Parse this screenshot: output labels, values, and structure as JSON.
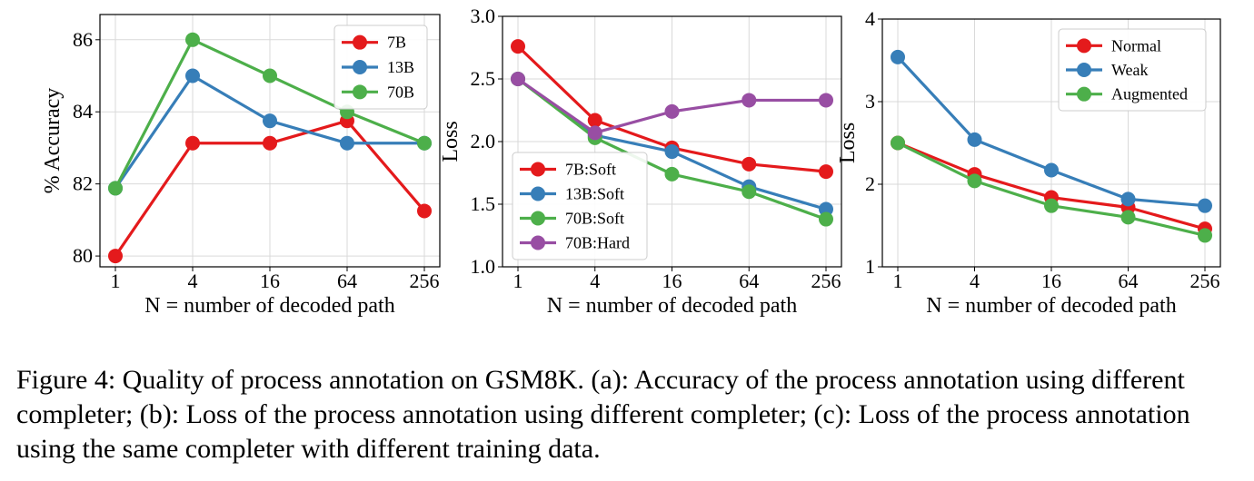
{
  "chart_data": [
    {
      "type": "line",
      "x": [
        "1",
        "4",
        "16",
        "64",
        "256"
      ],
      "ylabel": "% Accuracy",
      "xlabel": "N = number of decoded path",
      "ylim": [
        79.7,
        86.7
      ],
      "yticks": [
        80,
        82,
        84,
        86
      ],
      "ytick_labels": [
        "80",
        "82",
        "84",
        "86"
      ],
      "grid": true,
      "legend": "top-right",
      "series": [
        {
          "name": "7B",
          "color": "#e41a1c",
          "values": [
            80.0,
            83.13,
            83.13,
            83.75,
            81.25
          ]
        },
        {
          "name": "13B",
          "color": "#377eb8",
          "values": [
            81.88,
            85.0,
            83.75,
            83.13,
            83.13
          ]
        },
        {
          "name": "70B",
          "color": "#4daf4a",
          "values": [
            81.88,
            86.0,
            85.0,
            84.0,
            83.13
          ]
        }
      ]
    },
    {
      "type": "line",
      "x": [
        "1",
        "4",
        "16",
        "64",
        "256"
      ],
      "ylabel": "Loss",
      "xlabel": "N = number of decoded path",
      "ylim": [
        1.0,
        3.0
      ],
      "yticks": [
        1.0,
        1.5,
        2.0,
        2.5,
        3.0
      ],
      "ytick_labels": [
        "1.0",
        "1.5",
        "2.0",
        "2.5",
        "3.0"
      ],
      "grid": true,
      "legend": "bottom-left",
      "series": [
        {
          "name": "7B:Soft",
          "color": "#e41a1c",
          "values": [
            2.76,
            2.17,
            1.95,
            1.82,
            1.76
          ]
        },
        {
          "name": "13B:Soft",
          "color": "#377eb8",
          "values": [
            2.5,
            2.05,
            1.92,
            1.64,
            1.46
          ]
        },
        {
          "name": "70B:Soft",
          "color": "#4daf4a",
          "values": [
            2.5,
            2.03,
            1.74,
            1.6,
            1.38
          ]
        },
        {
          "name": "70B:Hard",
          "color": "#984ea3",
          "values": [
            2.5,
            2.07,
            2.24,
            2.33,
            2.33
          ]
        }
      ]
    },
    {
      "type": "line",
      "x": [
        "1",
        "4",
        "16",
        "64",
        "256"
      ],
      "ylabel": "Loss",
      "xlabel": "N = number of decoded path",
      "ylim": [
        1.0,
        4.0
      ],
      "yticks": [
        1,
        2,
        3,
        4
      ],
      "ytick_labels": [
        "1",
        "2",
        "3",
        "4"
      ],
      "grid": true,
      "legend": "top-right",
      "series": [
        {
          "name": "Normal",
          "color": "#e41a1c",
          "values": [
            2.5,
            2.12,
            1.84,
            1.72,
            1.46
          ]
        },
        {
          "name": "Weak",
          "color": "#377eb8",
          "values": [
            3.54,
            2.54,
            2.17,
            1.82,
            1.74
          ]
        },
        {
          "name": "Augmented",
          "color": "#4daf4a",
          "values": [
            2.5,
            2.04,
            1.74,
            1.6,
            1.38
          ]
        }
      ]
    }
  ],
  "caption": "Figure 4: Quality of process annotation on GSM8K. (a): Accuracy of the process annotation using different completer; (b): Loss of the process annotation using different completer; (c): Loss of the process annotation using the same completer with different training data."
}
